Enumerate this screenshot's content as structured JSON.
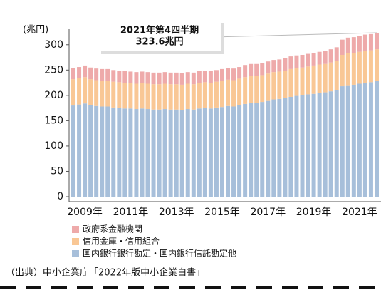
{
  "chart_data": {
    "type": "stacked_bar",
    "y_label": "(兆円)",
    "annotation": [
      "2021年第4四半期",
      "323.6兆円"
    ],
    "source": "（出典）中小企業庁「2022年版中小企業白書」",
    "categories": [
      null,
      null,
      "2009年",
      null,
      null,
      null,
      null,
      null,
      null,
      null,
      "2011年",
      null,
      null,
      null,
      null,
      null,
      null,
      null,
      "2013年",
      null,
      null,
      null,
      null,
      null,
      null,
      null,
      "2015年",
      null,
      null,
      null,
      null,
      null,
      null,
      null,
      "2017年",
      null,
      null,
      null,
      null,
      null,
      null,
      null,
      "2019年",
      null,
      null,
      null,
      null,
      null,
      null,
      null,
      "2021年",
      null,
      null,
      null
    ],
    "ylim": [
      0,
      325
    ],
    "yticks": [
      0,
      50,
      100,
      150,
      200,
      250,
      300
    ],
    "series": [
      {
        "name": "国内銀行銀行勘定・国内銀行信託勘定他",
        "color": "#a7bfda",
        "values": [
          180,
          182,
          184,
          181,
          179,
          178,
          178,
          176,
          175,
          174,
          174,
          173,
          174,
          173,
          172,
          172,
          173,
          172,
          172,
          171,
          173,
          172,
          174,
          175,
          174,
          176,
          177,
          179,
          178,
          181,
          183,
          185,
          185,
          187,
          189,
          192,
          193,
          195,
          197,
          199,
          200,
          202,
          203,
          205,
          206,
          208,
          210,
          218,
          220,
          221,
          223,
          225,
          226,
          228
        ]
      },
      {
        "name": "信用金庫・信用組合",
        "color": "#f9c795",
        "values": [
          52,
          52,
          52,
          51,
          51,
          51,
          51,
          51,
          51,
          51,
          50,
          50,
          50,
          50,
          50,
          50,
          50,
          50,
          50,
          50,
          50,
          50,
          51,
          51,
          51,
          51,
          52,
          52,
          52,
          52,
          53,
          53,
          53,
          53,
          54,
          54,
          54,
          54,
          55,
          55,
          55,
          55,
          56,
          56,
          56,
          57,
          58,
          62,
          63,
          63,
          63,
          63,
          63,
          63
        ]
      },
      {
        "name": "政府系金融機関",
        "color": "#eeaaaa",
        "values": [
          22,
          22,
          23,
          23,
          23,
          23,
          23,
          23,
          23,
          23,
          23,
          23,
          23,
          23,
          23,
          23,
          23,
          23,
          23,
          23,
          23,
          23,
          23,
          23,
          23,
          23,
          23,
          23,
          23,
          23,
          24,
          24,
          24,
          24,
          24,
          24,
          24,
          24,
          25,
          25,
          25,
          25,
          25,
          25,
          25,
          26,
          27,
          30,
          31,
          31,
          31,
          32,
          32,
          32.6
        ]
      }
    ]
  }
}
